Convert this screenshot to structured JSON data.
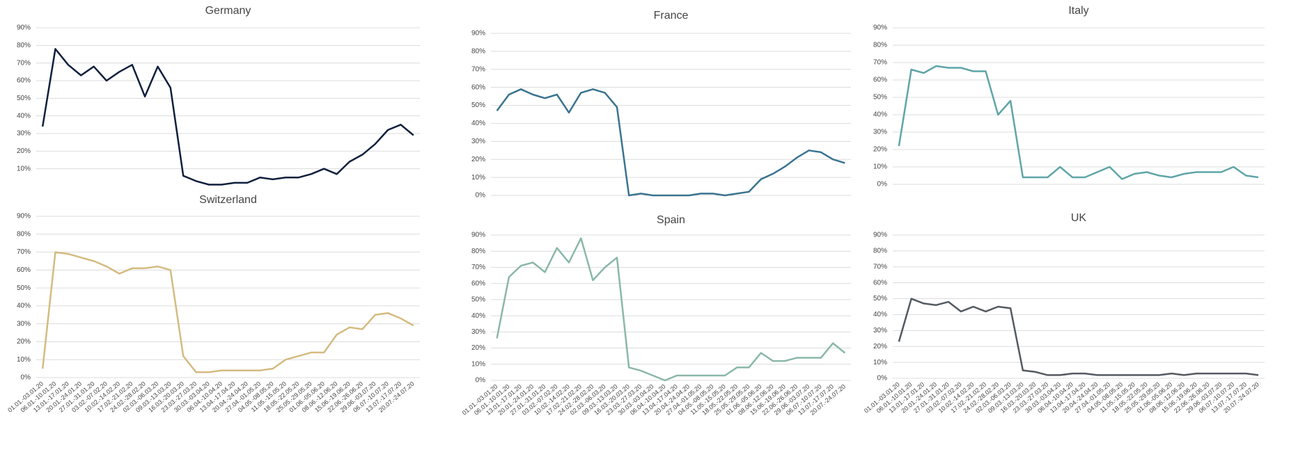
{
  "chart_data": [
    {
      "type": "line",
      "title": "Germany",
      "color": "#0f1f3d",
      "values": [
        34,
        78,
        69,
        63,
        68,
        60,
        65,
        69,
        51,
        68,
        56,
        6,
        3,
        1,
        1,
        2,
        2,
        5,
        4,
        5,
        5,
        7,
        10,
        7,
        14,
        18,
        24,
        32,
        35,
        29
      ],
      "ylim": [
        0,
        90
      ],
      "yticks": [
        {
          "value": 10,
          "label": "10%"
        },
        {
          "value": 20,
          "label": "20%"
        },
        {
          "value": 30,
          "label": "30%"
        },
        {
          "value": 40,
          "label": "40%"
        },
        {
          "value": 50,
          "label": "50%"
        },
        {
          "value": 60,
          "label": "60%"
        },
        {
          "value": 70,
          "label": "70%"
        },
        {
          "value": 80,
          "label": "80%"
        },
        {
          "value": 90,
          "label": "90%"
        }
      ],
      "grid": true
    },
    {
      "type": "line",
      "title": "France",
      "color": "#3a7390",
      "values": [
        47,
        56,
        59,
        56,
        54,
        56,
        46,
        57,
        59,
        57,
        49,
        0,
        1,
        0,
        0,
        0,
        0,
        1,
        1,
        0,
        1,
        2,
        9,
        12,
        16,
        21,
        25,
        24,
        20,
        18
      ],
      "ylim": [
        0,
        90
      ],
      "yticks": [
        {
          "value": 0,
          "label": "0%"
        },
        {
          "value": 10,
          "label": "10%"
        },
        {
          "value": 20,
          "label": "20%"
        },
        {
          "value": 30,
          "label": "30%"
        },
        {
          "value": 40,
          "label": "40%"
        },
        {
          "value": 50,
          "label": "50%"
        },
        {
          "value": 60,
          "label": "60%"
        },
        {
          "value": 70,
          "label": "70%"
        },
        {
          "value": 80,
          "label": "80%"
        },
        {
          "value": 90,
          "label": "90%"
        }
      ],
      "grid": true
    },
    {
      "type": "line",
      "title": "Italy",
      "color": "#5fa5a8",
      "values": [
        22,
        66,
        64,
        68,
        67,
        67,
        65,
        65,
        40,
        48,
        4,
        4,
        4,
        10,
        4,
        4,
        7,
        10,
        3,
        6,
        7,
        5,
        4,
        6,
        7,
        7,
        7,
        10,
        5,
        4
      ],
      "ylim": [
        0,
        90
      ],
      "yticks": [
        {
          "value": 0,
          "label": "0%"
        },
        {
          "value": 10,
          "label": "10%"
        },
        {
          "value": 20,
          "label": "20%"
        },
        {
          "value": 30,
          "label": "30%"
        },
        {
          "value": 40,
          "label": "40%"
        },
        {
          "value": 50,
          "label": "50%"
        },
        {
          "value": 60,
          "label": "60%"
        },
        {
          "value": 70,
          "label": "70%"
        },
        {
          "value": 80,
          "label": "80%"
        },
        {
          "value": 90,
          "label": "90%"
        }
      ],
      "grid": true
    },
    {
      "type": "line",
      "title": "Switzerland",
      "color": "#d4bb80",
      "categories": [
        "01.01.-03.01.20",
        "06.01.-10.01.20",
        "13.01.-17.01.20",
        "20.01.-24.01.20",
        "27.01.-31.01.20",
        "03.02.-07.02.20",
        "10.02.-14.02.20",
        "17.02.-21.02.20",
        "24.02.-28.02.20",
        "02.03.-06.03.20",
        "09.03.-13.03.20",
        "16.03.-20.03.20",
        "23.03.-27.03.20",
        "30.03.-03.04.20",
        "06.04.-10.04.20",
        "13.04.-17.04.20",
        "20.04.-24.04.20",
        "27.04.-01.05.20",
        "04.05.-08.05.20",
        "11.05.-15.05.20",
        "18.05.-22.05.20",
        "25.05.-29.05.20",
        "01.06.-05.06.20",
        "08.06.-12.06.20",
        "15.06.-19.06.20",
        "22.06.-26.06.20",
        "29.06.-03.07.20",
        "06.07.-10.07.20",
        "13.07.-17.07.20",
        "20.07.-24.07.20"
      ],
      "values": [
        5,
        70,
        69,
        67,
        65,
        62,
        58,
        61,
        61,
        62,
        60,
        12,
        3,
        3,
        4,
        4,
        4,
        4,
        5,
        10,
        12,
        14,
        14,
        24,
        28,
        27,
        35,
        36,
        33,
        29
      ],
      "ylim": [
        0,
        90
      ],
      "yticks": [
        {
          "value": 0,
          "label": "0%"
        },
        {
          "value": 10,
          "label": "10%"
        },
        {
          "value": 20,
          "label": "20%"
        },
        {
          "value": 30,
          "label": "30%"
        },
        {
          "value": 40,
          "label": "40%"
        },
        {
          "value": 50,
          "label": "50%"
        },
        {
          "value": 60,
          "label": "60%"
        },
        {
          "value": 70,
          "label": "70%"
        },
        {
          "value": 80,
          "label": "80%"
        },
        {
          "value": 90,
          "label": "90%"
        }
      ],
      "grid": true
    },
    {
      "type": "line",
      "title": "Spain",
      "color": "#8ab8a6",
      "categories": [
        "01.01.-03.01.20",
        "06.01.-10.01.20",
        "13.01.-17.01.20",
        "20.01.-24.01.20",
        "27.01.-31.01.20",
        "03.02.-07.02.20",
        "10.02.-14.02.20",
        "17.02.-21.02.20",
        "24.02.-28.02.20",
        "02.03.-06.03.20",
        "09.03.-13.03.20",
        "16.03.-20.03.20",
        "23.03.-27.03.20",
        "30.03.-03.04.20",
        "06.04.-10.04.20",
        "13.04.-17.04.20",
        "20.04.-24.04.20",
        "27.04.-01.05.20",
        "04.05.-08.05.20",
        "11.05.-15.05.20",
        "18.05.-22.05.20",
        "25.05.-29.05.20",
        "01.06.-05.06.20",
        "08.06.-12.06.20",
        "15.06.-19.06.20",
        "22.06.-26.06.20",
        "29.06.-03.07.20",
        "06.07.-10.07.20",
        "13.07.-17.07.20",
        "20.07.-24.07.20"
      ],
      "values": [
        26,
        64,
        71,
        73,
        67,
        82,
        73,
        88,
        62,
        70,
        76,
        8,
        6,
        3,
        0,
        3,
        3,
        3,
        3,
        3,
        8,
        8,
        17,
        12,
        12,
        14,
        14,
        14,
        23,
        17
      ],
      "ylim": [
        0,
        90
      ],
      "yticks": [
        {
          "value": 0,
          "label": "0%"
        },
        {
          "value": 10,
          "label": "10%"
        },
        {
          "value": 20,
          "label": "20%"
        },
        {
          "value": 30,
          "label": "30%"
        },
        {
          "value": 40,
          "label": "40%"
        },
        {
          "value": 50,
          "label": "50%"
        },
        {
          "value": 60,
          "label": "60%"
        },
        {
          "value": 70,
          "label": "70%"
        },
        {
          "value": 80,
          "label": "80%"
        },
        {
          "value": 90,
          "label": "90%"
        }
      ],
      "grid": true
    },
    {
      "type": "line",
      "title": "UK",
      "color": "#545a61",
      "categories": [
        "01.01.-03.01.20",
        "06.01.-10.01.20",
        "13.01.-17.01.20",
        "20.01.-24.01.20",
        "27.01.-31.01.20",
        "03.02.-07.02.20",
        "10.02.-14.02.20",
        "17.02.-21.02.20",
        "24.02.-28.02.20",
        "02.03.-06.03.20",
        "09.03.-13.03.20",
        "16.03.-20.03.20",
        "23.03.-27.03.20",
        "30.03.-03.04.20",
        "06.04.-10.04.20",
        "13.04.-17.04.20",
        "20.04.-24.04.20",
        "27.04.-01.05.20",
        "04.05.-08.05.20",
        "11.05.-15.05.20",
        "18.05.-22.05.20",
        "25.05.-29.05.20",
        "01.06.-05.06.20",
        "08.06.-12.06.20",
        "15.06.-19.06.20",
        "22.06.-26.06.20",
        "29.06.-03.07.20",
        "06.07.-10.07.20",
        "13.07.-17.07.20",
        "20.07.-24.07.20"
      ],
      "values": [
        23,
        50,
        47,
        46,
        48,
        42,
        45,
        42,
        45,
        44,
        5,
        4,
        2,
        2,
        3,
        3,
        2,
        2,
        2,
        2,
        2,
        2,
        3,
        2,
        3,
        3,
        3,
        3,
        3,
        2
      ],
      "ylim": [
        0,
        90
      ],
      "yticks": [
        {
          "value": 0,
          "label": "0%"
        },
        {
          "value": 10,
          "label": "10%"
        },
        {
          "value": 20,
          "label": "20%"
        },
        {
          "value": 30,
          "label": "30%"
        },
        {
          "value": 40,
          "label": "40%"
        },
        {
          "value": 50,
          "label": "50%"
        },
        {
          "value": 60,
          "label": "60%"
        },
        {
          "value": 70,
          "label": "70%"
        },
        {
          "value": 80,
          "label": "80%"
        },
        {
          "value": 90,
          "label": "90%"
        }
      ],
      "grid": true
    }
  ]
}
